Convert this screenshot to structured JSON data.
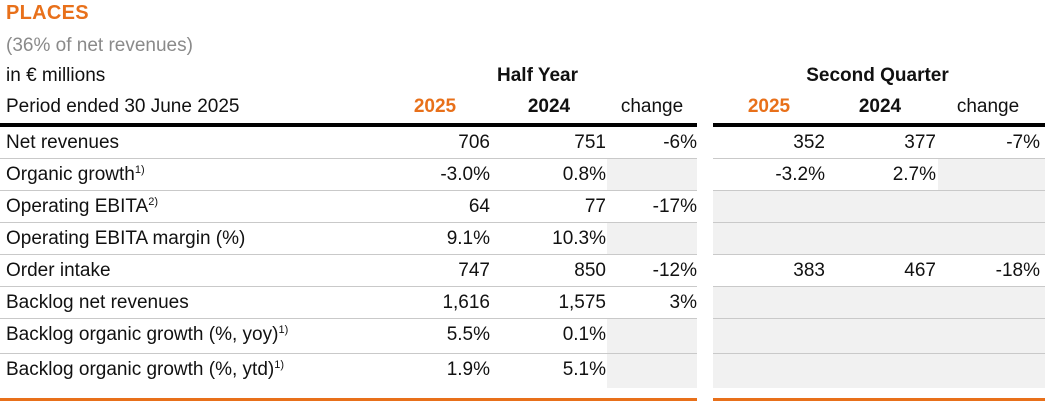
{
  "title": "PLACES",
  "subtitle": "(36% of net revenues)",
  "units": "in € millions",
  "groups": {
    "half_year": "Half Year",
    "second_quarter": "Second Quarter"
  },
  "header": {
    "period": "Period ended 30 June 2025",
    "hy": {
      "y2025": "2025",
      "y2024": "2024",
      "change": "change"
    },
    "q2": {
      "y2025": "2025",
      "y2024": "2024",
      "change": "change"
    }
  },
  "rows": [
    {
      "label": "Net revenues",
      "sup": "",
      "hy": [
        "706",
        "751",
        "-6%"
      ],
      "q2": [
        "352",
        "377",
        "-7%"
      ]
    },
    {
      "label": "Organic growth",
      "sup": "1)",
      "hy": [
        "-3.0%",
        "0.8%",
        ""
      ],
      "q2": [
        "-3.2%",
        "2.7%",
        ""
      ]
    },
    {
      "label": "Operating EBITA",
      "sup": "2)",
      "hy": [
        "64",
        "77",
        "-17%"
      ],
      "q2": [
        "",
        "",
        ""
      ]
    },
    {
      "label": "Operating EBITA margin (%)",
      "sup": "",
      "hy": [
        "9.1%",
        "10.3%",
        ""
      ],
      "q2": [
        "",
        "",
        ""
      ]
    },
    {
      "label": "Order intake",
      "sup": "",
      "hy": [
        "747",
        "850",
        "-12%"
      ],
      "q2": [
        "383",
        "467",
        "-18%"
      ]
    },
    {
      "label": "Backlog net revenues",
      "sup": "",
      "hy": [
        "1,616",
        "1,575",
        "3%"
      ],
      "q2": [
        "",
        "",
        ""
      ]
    },
    {
      "label": "Backlog organic growth (%, yoy)",
      "sup": "1)",
      "hy": [
        "5.5%",
        "0.1%",
        ""
      ],
      "q2": [
        "",
        "",
        ""
      ]
    },
    {
      "label": "Backlog organic growth (%, ytd)",
      "sup": "1)",
      "hy": [
        "1.9%",
        "5.1%",
        ""
      ],
      "q2": [
        "",
        "",
        ""
      ]
    }
  ],
  "colors": {
    "accent": "#e8701a",
    "shade": "#f1f1f1",
    "subtitle": "#8a8a8a"
  }
}
